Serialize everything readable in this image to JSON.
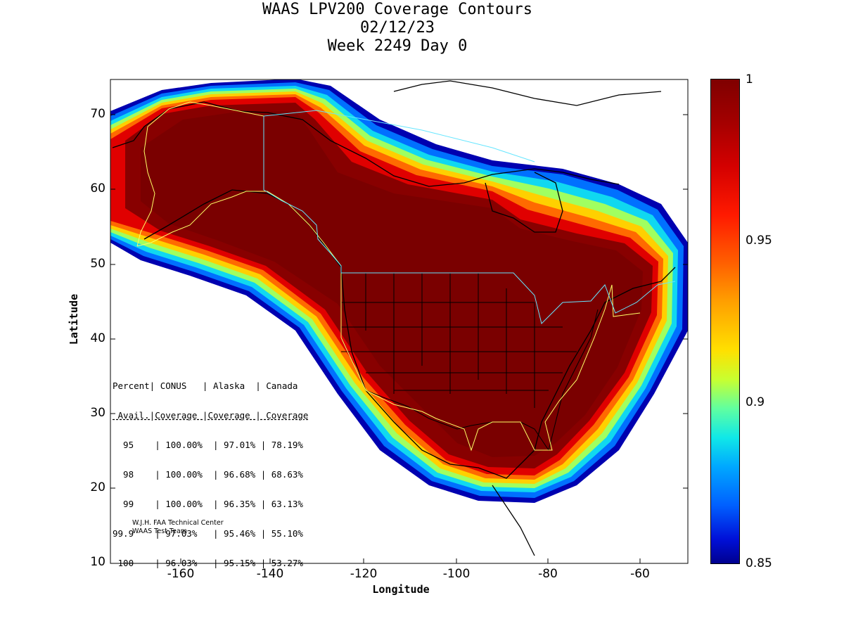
{
  "title": {
    "line1": "WAAS LPV200 Coverage Contours",
    "line2": "02/12/23",
    "line3": "Week 2249 Day 0"
  },
  "axes": {
    "xlabel": "Longitude",
    "ylabel": "Latitude",
    "x_ticks": [
      "-160",
      "-140",
      "-120",
      "-100",
      "-80",
      "-60"
    ],
    "y_ticks": [
      "70",
      "60",
      "50",
      "40",
      "30",
      "20",
      "10"
    ],
    "x_range": [
      -175,
      -50
    ],
    "y_range": [
      10,
      75
    ]
  },
  "colorbar": {
    "ticks": [
      "1",
      "0.95",
      "0.9",
      "0.85"
    ],
    "range": [
      0.85,
      1
    ],
    "colormap": "jet"
  },
  "colors": {
    "dark_red": "#800000",
    "state_lines": "#000000",
    "region_border_yellow": "#ffff66",
    "region_border_cyan": "#66e6ff"
  },
  "stats_table": {
    "header1": "Percent| CONUS   | Alaska  | Canada",
    "header2": " Avail.|Coverage |Coverage | Coverage",
    "rows": [
      "  95    | 100.00%  | 97.01% | 78.19%",
      "  98    | 100.00%  | 96.68% | 68.63%",
      "  99    | 100.00%  | 96.35% | 63.13%",
      "99.9    | 97.03%   | 95.46% | 55.10%",
      " 100    | 96.03%   | 95.15% | 53.27%"
    ]
  },
  "credit": {
    "line1": "W.J.H. FAA Technical Center",
    "line2": "WAAS Test Team"
  }
}
